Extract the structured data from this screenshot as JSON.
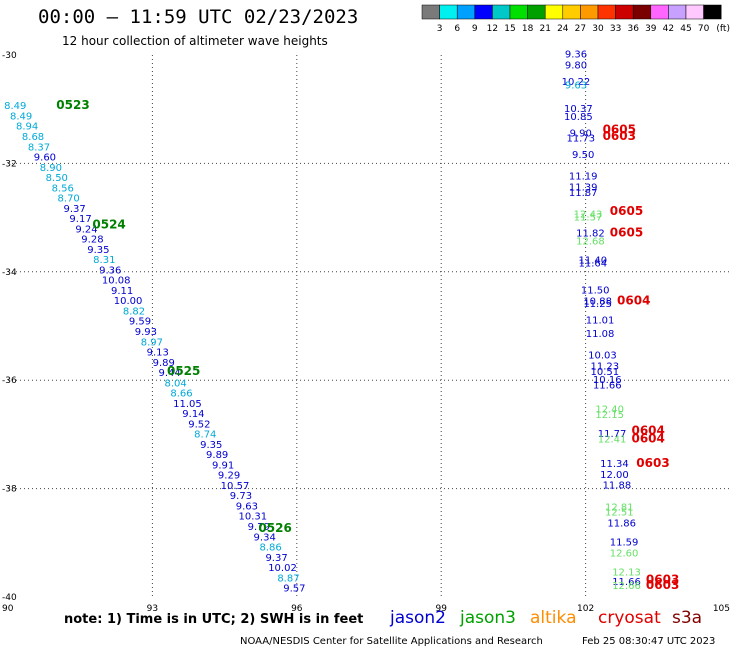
{
  "header": {
    "title": "00:00 – 11:59 UTC 02/23/2023",
    "subtitle": "12 hour collection of altimeter wave heights"
  },
  "color_scale": {
    "colors": [
      "#7a7a7a",
      "#00f0f0",
      "#00a0ff",
      "#0000ff",
      "#00c8c8",
      "#00e000",
      "#00a000",
      "#ffff00",
      "#ffcc00",
      "#ff9900",
      "#ff3300",
      "#cc0000",
      "#7a0000",
      "#ff66ff",
      "#c8a0ff",
      "#ffc8ff",
      "#000000"
    ],
    "labels": [
      "3",
      "6",
      "9",
      "12",
      "15",
      "18",
      "21",
      "24",
      "27",
      "30",
      "33",
      "36",
      "39",
      "42",
      "45",
      "70",
      "(ft)"
    ]
  },
  "chart_data": {
    "type": "scatter",
    "title": "00:00 – 11:59 UTC 02/23/2023",
    "subtitle": "12 hour collection of altimeter wave heights",
    "xlabel": "",
    "ylabel": "",
    "xlim": [
      90,
      105
    ],
    "ylim": [
      -40,
      -30
    ],
    "x_ticks": [
      90,
      93,
      96,
      99,
      102,
      105
    ],
    "y_ticks": [
      -30,
      -32,
      -34,
      -36,
      -38,
      -40
    ],
    "grid": true,
    "tick_labels": {
      "x": [
        "90",
        "93",
        "96",
        "99",
        "102",
        "105"
      ],
      "y": [
        "-30",
        "-32",
        "-34",
        "-36",
        "-38",
        "-40"
      ]
    },
    "series_colors": {
      "jason2": "#0000d0",
      "jason3": "#008000",
      "altika": "#ff8c00",
      "cryosat": "#e00000",
      "s3a": "#800000"
    },
    "series": [
      {
        "name": "jason3",
        "color": "#00aad8",
        "lon_start": 90.15,
        "lon_end": 95.95,
        "lat_start": -31.0,
        "lat_end": -39.9,
        "values": [
          "8.49",
          "8.49",
          "8.94",
          "8.68",
          "8.37",
          "9.60",
          "8.90",
          "8.50",
          "8.56",
          "8.70",
          "9.37",
          "9.17",
          "9.24",
          "9.28",
          "9.35",
          "8.31",
          "9.36",
          "10.08",
          "9.11",
          "10.00",
          "8.82",
          "9.59",
          "9.93",
          "8.97",
          "9.13",
          "9.89",
          "9.44",
          "8.04",
          "8.66",
          "11.05",
          "9.14",
          "9.52",
          "8.74",
          "9.35",
          "9.89",
          "9.91",
          "9.29",
          "10.57",
          "9.73",
          "9.63",
          "10.31",
          "9.79",
          "9.34",
          "8.86",
          "9.37",
          "10.02",
          "8.87",
          "9.57"
        ],
        "colors": [
          "#00aad8",
          "#00aad8",
          "#00aad8",
          "#00aad8",
          "#00aad8",
          "#0000d0",
          "#00aad8",
          "#00aad8",
          "#00aad8",
          "#00aad8",
          "#0000d0",
          "#0000d0",
          "#0000d0",
          "#0000d0",
          "#0000d0",
          "#00aad8",
          "#0000d0",
          "#0000d0",
          "#0000d0",
          "#0000d0",
          "#00aad8",
          "#0000d0",
          "#0000d0",
          "#00aad8",
          "#0000d0",
          "#0000d0",
          "#0000d0",
          "#00aad8",
          "#00aad8",
          "#0000d0",
          "#0000d0",
          "#0000d0",
          "#00aad8",
          "#0000d0",
          "#0000d0",
          "#0000d0",
          "#0000d0",
          "#0000d0",
          "#0000d0",
          "#0000d0",
          "#0000d0",
          "#0000d0",
          "#0000d0",
          "#00aad8",
          "#0000d0",
          "#0000d0",
          "#00aad8",
          "#0000d0"
        ]
      },
      {
        "name": "cryosat",
        "color": "#0000d0",
        "points": [
          {
            "lon": 101.8,
            "lat": -30.05,
            "v": "9.36",
            "c": "#0000d0"
          },
          {
            "lon": 101.8,
            "lat": -30.25,
            "v": "9.80",
            "c": "#0000d0"
          },
          {
            "lon": 101.8,
            "lat": -30.55,
            "v": "10.22",
            "c": "#0000d0"
          },
          {
            "lon": 101.8,
            "lat": -30.62,
            "v": "9.63",
            "c": "#00aad8"
          },
          {
            "lon": 101.85,
            "lat": -31.05,
            "v": "10.37",
            "c": "#0000d0"
          },
          {
            "lon": 101.85,
            "lat": -31.2,
            "v": "10.85",
            "c": "#0000d0"
          },
          {
            "lon": 101.9,
            "lat": -31.5,
            "v": "9.90",
            "c": "#0000d0"
          },
          {
            "lon": 101.9,
            "lat": -31.6,
            "v": "11.73",
            "c": "#0000d0"
          },
          {
            "lon": 101.95,
            "lat": -31.9,
            "v": "9.50",
            "c": "#0000d0"
          },
          {
            "lon": 101.95,
            "lat": -32.3,
            "v": "11.19",
            "c": "#0000d0"
          },
          {
            "lon": 101.95,
            "lat": -32.5,
            "v": "11.39",
            "c": "#0000d0"
          },
          {
            "lon": 101.95,
            "lat": -32.6,
            "v": "11.87",
            "c": "#0000d0"
          },
          {
            "lon": 102.05,
            "lat": -33.0,
            "v": "12.43",
            "c": "#66e066"
          },
          {
            "lon": 102.05,
            "lat": -33.05,
            "v": "11.57",
            "c": "#66e066"
          },
          {
            "lon": 102.1,
            "lat": -33.35,
            "v": "11.82",
            "c": "#0000d0"
          },
          {
            "lon": 102.1,
            "lat": -33.5,
            "v": "12.68",
            "c": "#66e066"
          },
          {
            "lon": 102.15,
            "lat": -33.85,
            "v": "11.40",
            "c": "#0000d0"
          },
          {
            "lon": 102.15,
            "lat": -33.9,
            "v": "11.64",
            "c": "#0000d0"
          },
          {
            "lon": 102.2,
            "lat": -34.4,
            "v": "11.50",
            "c": "#0000d0"
          },
          {
            "lon": 102.25,
            "lat": -34.6,
            "v": "10.88",
            "c": "#0000d0"
          },
          {
            "lon": 102.25,
            "lat": -34.65,
            "v": "11.25",
            "c": "#0000d0"
          },
          {
            "lon": 102.3,
            "lat": -34.95,
            "v": "11.01",
            "c": "#0000d0"
          },
          {
            "lon": 102.3,
            "lat": -35.2,
            "v": "11.08",
            "c": "#0000d0"
          },
          {
            "lon": 102.35,
            "lat": -35.6,
            "v": "10.03",
            "c": "#0000d0"
          },
          {
            "lon": 102.4,
            "lat": -35.8,
            "v": "11.23",
            "c": "#0000d0"
          },
          {
            "lon": 102.4,
            "lat": -35.9,
            "v": "10.51",
            "c": "#0000d0"
          },
          {
            "lon": 102.45,
            "lat": -36.05,
            "v": "10.16",
            "c": "#0000d0"
          },
          {
            "lon": 102.45,
            "lat": -36.15,
            "v": "11.66",
            "c": "#0000d0"
          },
          {
            "lon": 102.5,
            "lat": -36.6,
            "v": "12.40",
            "c": "#66e066"
          },
          {
            "lon": 102.5,
            "lat": -36.7,
            "v": "12.15",
            "c": "#66e066"
          },
          {
            "lon": 102.55,
            "lat": -37.05,
            "v": "11.77",
            "c": "#0000d0"
          },
          {
            "lon": 102.55,
            "lat": -37.15,
            "v": "12.41",
            "c": "#66e066"
          },
          {
            "lon": 102.6,
            "lat": -37.6,
            "v": "11.34",
            "c": "#0000d0"
          },
          {
            "lon": 102.6,
            "lat": -37.8,
            "v": "12.00",
            "c": "#0000d0"
          },
          {
            "lon": 102.65,
            "lat": -38.0,
            "v": "11.88",
            "c": "#0000d0"
          },
          {
            "lon": 102.7,
            "lat": -38.4,
            "v": "12.81",
            "c": "#66e066"
          },
          {
            "lon": 102.7,
            "lat": -38.5,
            "v": "12.51",
            "c": "#66e066"
          },
          {
            "lon": 102.75,
            "lat": -38.7,
            "v": "11.86",
            "c": "#0000d0"
          },
          {
            "lon": 102.8,
            "lat": -39.05,
            "v": "11.59",
            "c": "#0000d0"
          },
          {
            "lon": 102.8,
            "lat": -39.25,
            "v": "12.60",
            "c": "#66e066"
          },
          {
            "lon": 102.85,
            "lat": -39.6,
            "v": "12.13",
            "c": "#66e066"
          },
          {
            "lon": 102.85,
            "lat": -39.78,
            "v": "11.66",
            "c": "#0000d0"
          },
          {
            "lon": 102.85,
            "lat": -39.85,
            "v": "12.66",
            "c": "#66e066"
          }
        ]
      }
    ],
    "annotations": [
      {
        "text": "0523",
        "lon": 91.35,
        "lat": -31.0,
        "color": "#008000"
      },
      {
        "text": "0524",
        "lon": 92.1,
        "lat": -33.2,
        "color": "#008000"
      },
      {
        "text": "0525",
        "lon": 93.65,
        "lat": -35.9,
        "color": "#008000"
      },
      {
        "text": "0526",
        "lon": 95.55,
        "lat": -38.8,
        "color": "#008000"
      },
      {
        "text": "0605",
        "lon": 102.7,
        "lat": -31.45,
        "color": "#e00000"
      },
      {
        "text": "0603",
        "lon": 102.7,
        "lat": -31.57,
        "color": "#e00000"
      },
      {
        "text": "0605",
        "lon": 102.85,
        "lat": -32.95,
        "color": "#e00000"
      },
      {
        "text": "0605",
        "lon": 102.85,
        "lat": -33.35,
        "color": "#e00000"
      },
      {
        "text": "0604",
        "lon": 103.0,
        "lat": -34.6,
        "color": "#e00000"
      },
      {
        "text": "0604",
        "lon": 103.3,
        "lat": -37.0,
        "color": "#e00000"
      },
      {
        "text": "0604",
        "lon": 103.3,
        "lat": -37.15,
        "color": "#e00000"
      },
      {
        "text": "0603",
        "lon": 103.4,
        "lat": -37.6,
        "color": "#e00000"
      },
      {
        "text": "0603",
        "lon": 103.6,
        "lat": -39.75,
        "color": "#e00000"
      },
      {
        "text": "0603",
        "lon": 103.6,
        "lat": -39.85,
        "color": "#e00000"
      }
    ]
  },
  "footer": {
    "note": "note: 1) Time is in UTC; 2) SWH is in feet",
    "missions": [
      {
        "name": "jason2",
        "color": "#0000d0"
      },
      {
        "name": "jason3",
        "color": "#00a000"
      },
      {
        "name": "altika",
        "color": "#ff8c00"
      },
      {
        "name": "cryosat",
        "color": "#e00000"
      },
      {
        "name": "s3a",
        "color": "#800000"
      }
    ],
    "org": "NOAA/NESDIS Center for Satellite Applications and Research",
    "timestamp": "Feb 25 08:30:47 UTC 2023"
  }
}
